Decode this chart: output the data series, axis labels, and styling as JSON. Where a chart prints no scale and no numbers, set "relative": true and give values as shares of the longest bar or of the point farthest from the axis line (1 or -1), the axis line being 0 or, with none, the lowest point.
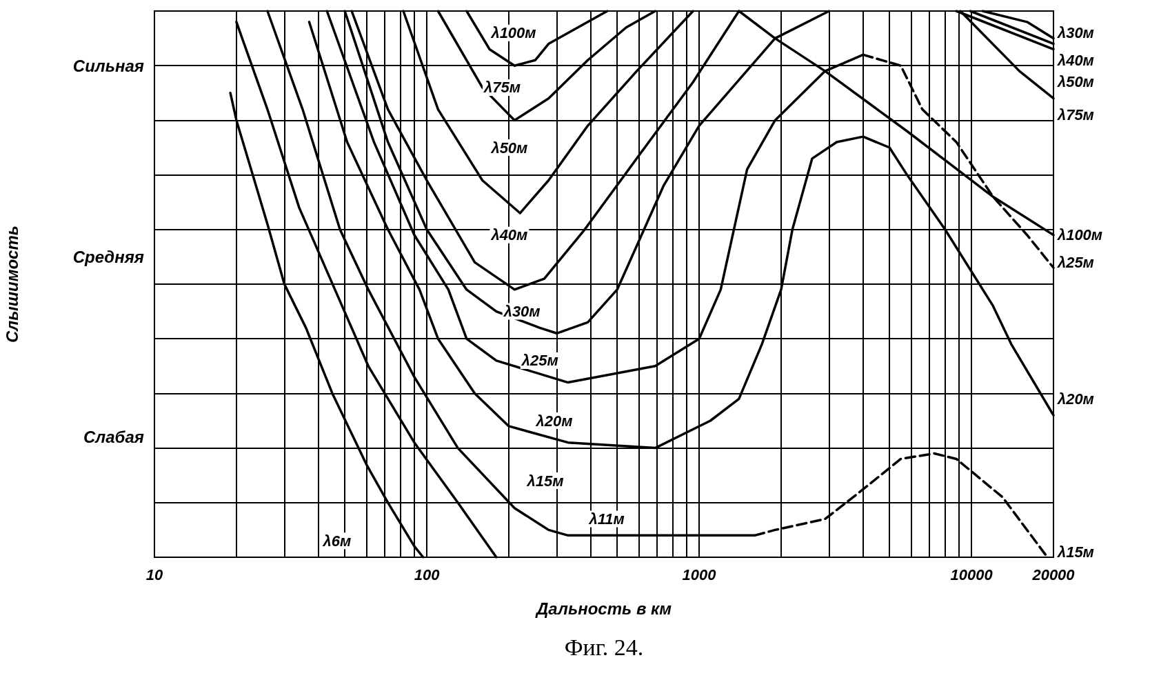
{
  "chart_data": {
    "type": "line",
    "xlabel": "Дальность в км",
    "log": "x",
    "grid": true,
    "marker": "none",
    "relative": true,
    "xlim": [
      10,
      20000
    ],
    "xticks": [
      10,
      {
        "value": 20,
        "label": null
      },
      {
        "value": 30,
        "label": null
      },
      {
        "value": 40,
        "label": null
      },
      {
        "value": 50,
        "label": null
      },
      {
        "value": 60,
        "label": null
      },
      {
        "value": 70,
        "label": null
      },
      {
        "value": 80,
        "label": null
      },
      {
        "value": 90,
        "label": null
      },
      100,
      {
        "value": 200,
        "label": null
      },
      {
        "value": 300,
        "label": null
      },
      {
        "value": 400,
        "label": null
      },
      {
        "value": 500,
        "label": null
      },
      {
        "value": 600,
        "label": null
      },
      {
        "value": 700,
        "label": null
      },
      {
        "value": 800,
        "label": null
      },
      {
        "value": 900,
        "label": null
      },
      1000,
      {
        "value": 2000,
        "label": null
      },
      {
        "value": 3000,
        "label": null
      },
      {
        "value": 4000,
        "label": null
      },
      {
        "value": 5000,
        "label": null
      },
      {
        "value": 6000,
        "label": null
      },
      {
        "value": 7000,
        "label": null
      },
      {
        "value": 8000,
        "label": null
      },
      {
        "value": 9000,
        "label": null
      },
      10000,
      20000
    ],
    "series": [
      {
        "color": "#000000",
        "x": [
          19,
          20,
          26,
          30,
          36,
          45,
          60,
          72,
          90,
          97
        ],
        "values": [
          0.85,
          0.8,
          0.61,
          0.5,
          0.42,
          0.3,
          0.17,
          0.1,
          0.02,
          0
        ]
      },
      {
        "color": "#000000",
        "x": [
          20,
          21,
          26,
          34,
          46,
          61,
          90,
          130,
          180
        ],
        "values": [
          0.98,
          0.95,
          0.82,
          0.64,
          0.49,
          0.35,
          0.21,
          0.1,
          0
        ]
      },
      {
        "color": "#000000",
        "x": [
          26,
          35,
          48,
          61,
          90,
          130,
          210,
          280,
          330,
          390,
          740,
          1600
        ],
        "values": [
          1,
          0.82,
          0.6,
          0.49,
          0.33,
          0.2,
          0.09,
          0.05,
          0.04,
          0.04,
          0.04,
          0.04
        ]
      },
      {
        "color": "#000000",
        "line_style": "dashed",
        "x": [
          1600,
          1900,
          2900,
          3900,
          5500,
          7300,
          8800,
          13000,
          19000
        ],
        "values": [
          0.04,
          0.05,
          0.07,
          0.12,
          0.18,
          0.19,
          0.18,
          0.11,
          0
        ]
      },
      {
        "color": "#000000",
        "x": [
          37,
          51,
          72,
          94,
          110,
          150,
          200,
          330,
          690,
          1100,
          1400,
          1700,
          2000,
          2200,
          2600,
          3200,
          4000,
          5000,
          5800,
          8000,
          12000,
          14000,
          20000
        ],
        "values": [
          0.98,
          0.76,
          0.6,
          0.49,
          0.4,
          0.3,
          0.24,
          0.21,
          0.2,
          0.25,
          0.29,
          0.39,
          0.49,
          0.6,
          0.73,
          0.76,
          0.77,
          0.75,
          0.7,
          0.6,
          0.46,
          0.39,
          0.26
        ]
      },
      {
        "color": "#000000",
        "x": [
          43,
          64,
          90,
          120,
          140,
          180,
          330,
          690,
          1000,
          1200,
          1500,
          1900,
          2900,
          4000
        ],
        "values": [
          1,
          0.76,
          0.59,
          0.49,
          0.4,
          0.36,
          0.32,
          0.35,
          0.4,
          0.49,
          0.71,
          0.8,
          0.89,
          0.92
        ]
      },
      {
        "color": "#000000",
        "line_style": "dashed",
        "x": [
          4000,
          5500,
          6600,
          8800,
          12000,
          16000,
          20000
        ],
        "values": [
          0.92,
          0.9,
          0.82,
          0.76,
          0.66,
          0.59,
          0.53
        ]
      },
      {
        "color": "#000000",
        "x": [
          50,
          72,
          100,
          140,
          180,
          260,
          300,
          390,
          500,
          740,
          1000,
          1900,
          3000,
          6000,
          11000,
          16000,
          20000
        ],
        "values": [
          1,
          0.76,
          0.6,
          0.49,
          0.45,
          0.42,
          0.41,
          0.43,
          0.49,
          0.68,
          0.79,
          0.95,
          1,
          null,
          1,
          0.98,
          0.95
        ]
      },
      {
        "color": "#000000",
        "x": [
          53,
          72,
          100,
          150,
          210,
          270,
          380,
          590,
          950,
          1400,
          4000,
          9900,
          20000
        ],
        "values": [
          1,
          0.82,
          0.69,
          0.54,
          0.49,
          0.51,
          0.6,
          0.73,
          0.87,
          1,
          null,
          1,
          0.94
        ]
      },
      {
        "color": "#000000",
        "x": [
          82,
          110,
          160,
          220,
          280,
          390,
          590,
          950,
          3000,
          8800,
          20000
        ],
        "values": [
          1,
          0.82,
          0.69,
          0.63,
          0.69,
          0.79,
          0.89,
          1,
          null,
          1,
          0.93
        ]
      },
      {
        "color": "#000000",
        "x": [
          110,
          160,
          210,
          280,
          390,
          540,
          690,
          3000,
          9100,
          15000,
          20000
        ],
        "values": [
          1,
          0.86,
          0.8,
          0.84,
          0.91,
          0.97,
          1,
          null,
          1,
          0.89,
          0.84
        ]
      },
      {
        "color": "#000000",
        "x": [
          140,
          170,
          210,
          250,
          280,
          460,
          800,
          1400,
          1900,
          2900,
          5800,
          12000,
          20000
        ],
        "values": [
          1,
          0.93,
          0.9,
          0.91,
          0.94,
          1,
          null,
          1,
          0.95,
          0.89,
          0.78,
          0.66,
          0.59
        ]
      }
    ],
    "annotations": [
      "Сильная",
      "Средняя",
      "Слабая",
      "λ100м",
      "λ75м",
      "λ50м",
      "λ40м",
      "λ30м",
      "λ25м",
      "λ20м",
      "λ15м",
      "λ11м",
      "λ6м",
      "λ30м",
      "λ40м",
      "λ50м",
      "λ75м",
      "λ100м",
      "λ25м",
      "λ20м",
      "λ15м",
      "Фиг. 24.",
      "Слышимость"
    ]
  }
}
